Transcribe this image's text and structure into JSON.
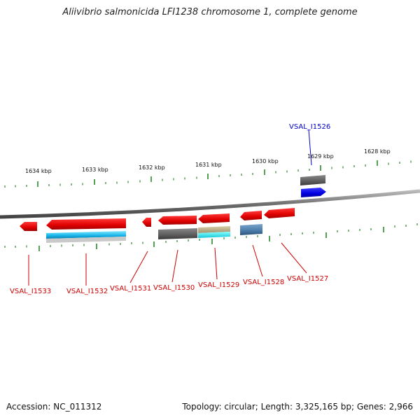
{
  "title": "Aliivibrio salmonicida LFI1238 chromosome 1, complete genome",
  "footer": {
    "accession": "Accession: NC_011312",
    "summary": "Topology: circular; Length: 3,325,165 bp; Genes: 2,966"
  },
  "colors": {
    "forward_gene": "#0000ee",
    "reverse_gene": "#ee0000",
    "ticks": "#2a8a2a",
    "backbone": "#777777"
  },
  "scale_labels": [
    "1634 kbp",
    "1633 kbp",
    "1632 kbp",
    "1631 kbp",
    "1630 kbp",
    "1629 kbp",
    "1628 kbp"
  ],
  "genes": [
    {
      "label": "VSAL_I1526",
      "strand": "forward"
    },
    {
      "label": "VSAL_I1527",
      "strand": "reverse"
    },
    {
      "label": "VSAL_I1528",
      "strand": "reverse"
    },
    {
      "label": "VSAL_I1529",
      "strand": "reverse"
    },
    {
      "label": "VSAL_I1530",
      "strand": "reverse"
    },
    {
      "label": "VSAL_I1531",
      "strand": "reverse"
    },
    {
      "label": "VSAL_I1532",
      "strand": "reverse"
    },
    {
      "label": "VSAL_I1533",
      "strand": "reverse"
    }
  ]
}
